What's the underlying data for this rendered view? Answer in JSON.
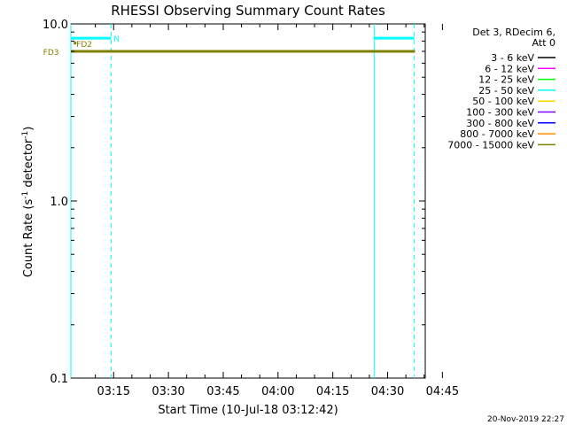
{
  "chart_data": {
    "type": "line",
    "title": "RHESSI Observing Summary Count Rates",
    "xlabel": "Start Time (10-Jul-18 03:12:42)",
    "ylabel_main": "Count Rate (s",
    "ylabel_sup1": "-1",
    "ylabel_mid": " detector",
    "ylabel_sup2": "-1",
    "ylabel_end": ")",
    "y_scale": "log",
    "ylim": [
      0.1,
      10.0
    ],
    "xlim_minutes": [
      3.3,
      100.3
    ],
    "y_ticks": [
      {
        "value": 10.0,
        "label": "10.0"
      },
      {
        "value": 1.0,
        "label": "1.0"
      },
      {
        "value": 0.1,
        "label": "0.1"
      }
    ],
    "x_ticks": [
      {
        "minute": 15,
        "label": "03:15"
      },
      {
        "minute": 30,
        "label": "03:30"
      },
      {
        "minute": 45,
        "label": "03:45"
      },
      {
        "minute": 60,
        "label": "04:00"
      },
      {
        "minute": 75,
        "label": "04:15"
      },
      {
        "minute": 90,
        "label": "04:30"
      },
      {
        "minute": 105,
        "label": "04:45"
      }
    ],
    "legend_header": [
      "Det 3, RDecim 6,",
      "Att 0"
    ],
    "series": [
      {
        "name": "3 - 6 keV",
        "color": "#000000"
      },
      {
        "name": "6 - 12 keV",
        "color": "#ff00ff"
      },
      {
        "name": "12 - 25 keV",
        "color": "#00ff00"
      },
      {
        "name": "25 - 50 keV",
        "color": "#00ffff"
      },
      {
        "name": "50 - 100 keV",
        "color": "#ffd700"
      },
      {
        "name": "100 - 300 keV",
        "color": "#8000ff"
      },
      {
        "name": "300 - 800 keV",
        "color": "#0000ff"
      },
      {
        "name": "800 - 7000 keV",
        "color": "#ff8c00"
      },
      {
        "name": "7000 - 15000 keV",
        "color": "#808000"
      }
    ],
    "data_line": {
      "series": "7000 - 15000 keV",
      "y": 7.0,
      "x_start_minute": 3.3,
      "x_end_minute": 97.5
    },
    "vlines_solid": [
      3.3,
      86.3
    ],
    "vlines_dashed": [
      14.3,
      97.3
    ],
    "night_bars": [
      {
        "x0": 3.3,
        "x1": 14.3,
        "y": 8.3
      },
      {
        "x0": 86.3,
        "x1": 97.3,
        "y": 8.3
      }
    ],
    "annotations": [
      {
        "text": "N",
        "x_minute": 15.0,
        "y": 8.3,
        "color": "#00ffff"
      },
      {
        "text": "FD2",
        "x_minute": 4.8,
        "y": 7.75,
        "color": "#808000"
      },
      {
        "text": "FD3",
        "x_minute": -4.3,
        "y": 7.0,
        "color": "#808000"
      }
    ],
    "grid": false
  },
  "footer_timestamp": "20-Nov-2019 22:27"
}
